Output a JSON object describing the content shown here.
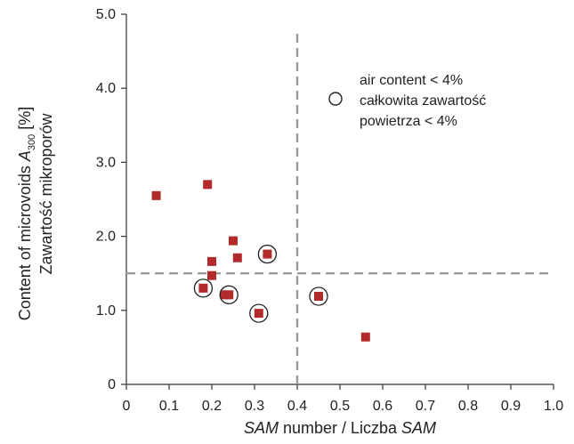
{
  "chart_data": {
    "type": "scatter",
    "xlim": [
      0,
      1.0
    ],
    "ylim": [
      0,
      5.0
    ],
    "x_ticks": [
      "0",
      "0.1",
      "0.2",
      "0.3",
      "0.4",
      "0.5",
      "0.6",
      "0.7",
      "0.8",
      "0.9",
      "1.0"
    ],
    "y_ticks": [
      "0",
      "1.0",
      "2.0",
      "3.0",
      "4.0",
      "5.0"
    ],
    "xlabel": {
      "part1": "SAM",
      "part2": " number / Liczba ",
      "part3": "SAM"
    },
    "ylabel": {
      "line1_prefix": "Content of microvoids ",
      "line1_var": "A",
      "line1_sub": "300",
      "line1_suffix": " [%]",
      "line2": "Zawartość mikroporów"
    },
    "grid": false,
    "reference_lines": [
      {
        "orientation": "vertical",
        "x": 0.4,
        "style": "dashed"
      },
      {
        "orientation": "horizontal",
        "y": 1.5,
        "style": "dashed"
      }
    ],
    "legend": {
      "position": "top-right",
      "marker": "open-circle",
      "lines": [
        "air content < 4%",
        "całkowita zawartość",
        "powietrza < 4%"
      ]
    },
    "series": [
      {
        "marker": "square",
        "color": "#b22a2a",
        "points": [
          {
            "x": 0.07,
            "y": 2.55,
            "circled": false
          },
          {
            "x": 0.19,
            "y": 2.7,
            "circled": false
          },
          {
            "x": 0.2,
            "y": 1.66,
            "circled": false
          },
          {
            "x": 0.25,
            "y": 1.94,
            "circled": false
          },
          {
            "x": 0.26,
            "y": 1.71,
            "circled": false
          },
          {
            "x": 0.2,
            "y": 1.47,
            "circled": false
          },
          {
            "x": 0.33,
            "y": 1.76,
            "circled": true
          },
          {
            "x": 0.18,
            "y": 1.3,
            "circled": true
          },
          {
            "x": 0.23,
            "y": 1.21,
            "circled": false
          },
          {
            "x": 0.24,
            "y": 1.21,
            "circled": true
          },
          {
            "x": 0.31,
            "y": 0.96,
            "circled": true
          },
          {
            "x": 0.45,
            "y": 1.19,
            "circled": true
          },
          {
            "x": 0.56,
            "y": 0.64,
            "circled": false
          }
        ]
      }
    ]
  }
}
